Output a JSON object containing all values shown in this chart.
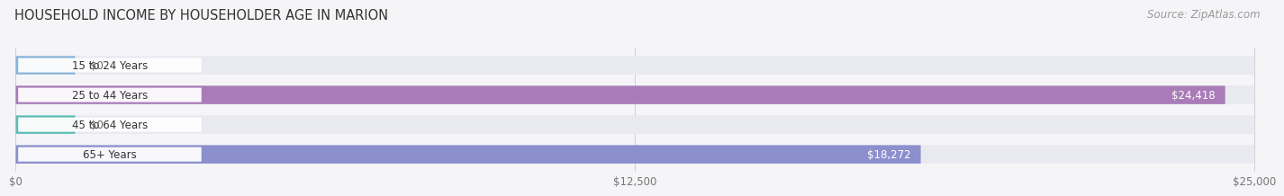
{
  "title": "HOUSEHOLD INCOME BY HOUSEHOLDER AGE IN MARION",
  "source": "Source: ZipAtlas.com",
  "categories": [
    "15 to 24 Years",
    "25 to 44 Years",
    "45 to 64 Years",
    "65+ Years"
  ],
  "values": [
    0,
    24418,
    0,
    18272
  ],
  "max_value": 25000,
  "bar_colors": [
    "#8ab4d8",
    "#a97cb8",
    "#5dbdb5",
    "#8b8fcc"
  ],
  "bar_bg_color": "#e9e9f0",
  "value_labels": [
    "$0",
    "$24,418",
    "$0",
    "$18,272"
  ],
  "x_ticks": [
    0,
    12500,
    25000
  ],
  "x_tick_labels": [
    "$0",
    "$12,500",
    "$25,000"
  ],
  "background_color": "#f5f5f8",
  "title_fontsize": 10.5,
  "source_fontsize": 8.5,
  "bar_label_fontsize": 8.5,
  "tick_fontsize": 8.5,
  "grid_color": "#d0d0d8",
  "label_box_color": "#ffffff"
}
